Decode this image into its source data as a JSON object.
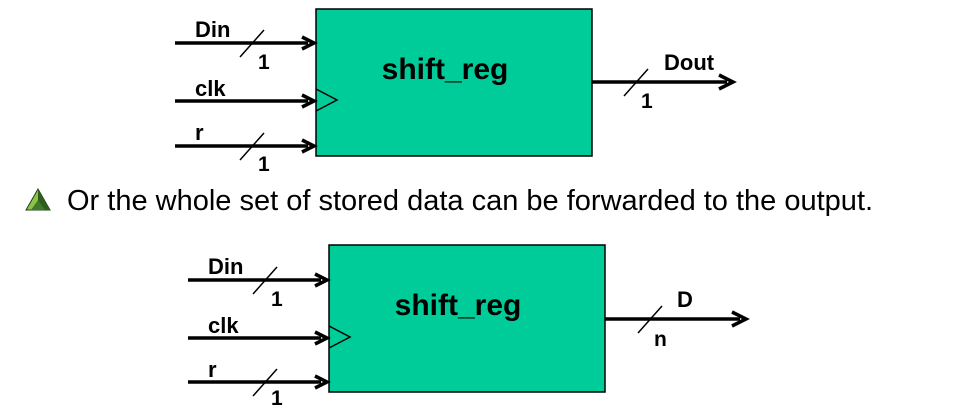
{
  "colors": {
    "block_fill": "#00CC99",
    "stroke": "#000000",
    "bullet_light": "#8BC34A",
    "bullet_dark": "#2E5E1E"
  },
  "bullet": {
    "icon": "triangle-bullet-icon",
    "text": "Or the whole set of stored data can be forwarded to the output."
  },
  "diagram_top": {
    "block_label": "shift_reg",
    "inputs": [
      {
        "name": "Din",
        "width": "1"
      },
      {
        "name": "clk"
      },
      {
        "name": "r",
        "width": "1"
      }
    ],
    "output": {
      "name": "Dout",
      "width": "1"
    }
  },
  "diagram_bottom": {
    "block_label": "shift_reg",
    "inputs": [
      {
        "name": "Din",
        "width": "1"
      },
      {
        "name": "clk"
      },
      {
        "name": "r",
        "width": "1"
      }
    ],
    "output": {
      "name": "D",
      "width": "n"
    }
  }
}
